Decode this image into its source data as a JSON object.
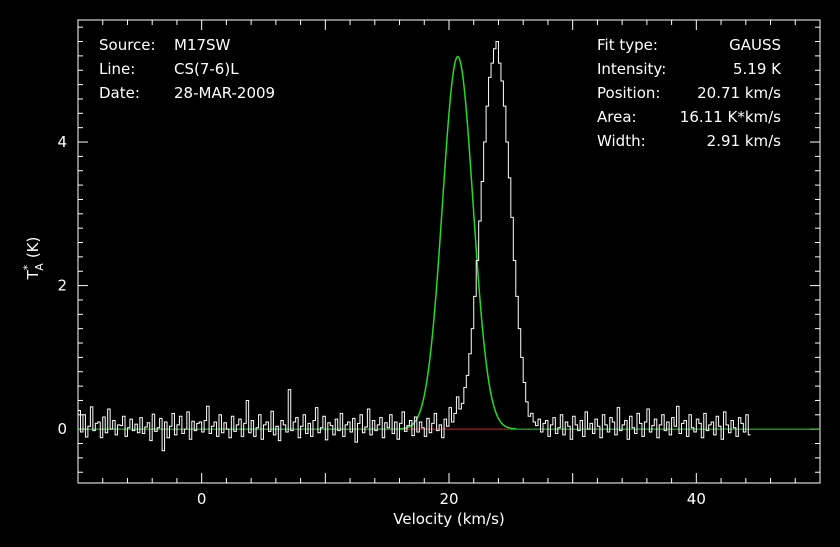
{
  "chart_data": {
    "type": "line",
    "xlabel": "Velocity (km/s)",
    "ylabel_main": "T",
    "ylabel_super": "*",
    "ylabel_sub": "A",
    "ylabel_unit": "(K)",
    "xlim": [
      -10,
      50
    ],
    "ylim": [
      -0.75,
      5.7
    ],
    "x_ticks": [
      0,
      20,
      40
    ],
    "y_ticks": [
      0,
      2,
      4
    ],
    "grid": false,
    "info_left": [
      {
        "key": "Source:",
        "value": "M17SW"
      },
      {
        "key": "Line:",
        "value": "CS(7-6)L"
      },
      {
        "key": "Date:",
        "value": "28-MAR-2009"
      }
    ],
    "info_right": [
      {
        "key": "Fit type:",
        "value": "GAUSS"
      },
      {
        "key": "Intensity:",
        "value": "5.19 K"
      },
      {
        "key": "Position:",
        "value": "20.71 km/s"
      },
      {
        "key": "Area:",
        "value": "16.11 K*km/s"
      },
      {
        "key": "Width:",
        "value": "2.91 km/s"
      }
    ],
    "fit": {
      "amplitude": 5.19,
      "center": 20.71,
      "fwhm": 2.91
    },
    "baseline_range": [
      16.5,
      25
    ],
    "series": [
      {
        "color": "#ffffff",
        "style": "histogram",
        "x_start": -10,
        "x_step": 0.2,
        "values": [
          0.26,
          -0.04,
          0.2,
          -0.11,
          0.04,
          0.31,
          -0.02,
          0.08,
          0.1,
          -0.12,
          0.17,
          -0.05,
          0.28,
          0.0,
          0.12,
          -0.08,
          0.06,
          0.05,
          0.18,
          -0.1,
          0.02,
          0.14,
          -0.02,
          0.07,
          -0.05,
          0.16,
          -0.06,
          0.03,
          0.09,
          -0.16,
          0.21,
          -0.03,
          0.02,
          0.15,
          -0.3,
          0.1,
          -0.12,
          0.04,
          0.22,
          -0.08,
          0.06,
          0.18,
          -0.06,
          0.0,
          0.24,
          -0.14,
          0.11,
          -0.02,
          0.08,
          0.1,
          -0.04,
          0.12,
          0.32,
          -0.06,
          0.04,
          0.1,
          -0.1,
          0.2,
          -0.05,
          0.09,
          0.0,
          -0.12,
          0.18,
          -0.03,
          0.06,
          0.14,
          -0.1,
          0.08,
          0.4,
          -0.05,
          0.12,
          -0.1,
          0.02,
          0.2,
          -0.14,
          0.06,
          0.1,
          -0.03,
          0.25,
          -0.08,
          0.04,
          -0.16,
          0.12,
          0.06,
          -0.04,
          0.55,
          -0.02,
          0.1,
          0.16,
          -0.12,
          0.04,
          0.2,
          -0.06,
          0.08,
          -0.1,
          0.12,
          0.3,
          -0.05,
          0.02,
          0.18,
          -0.15,
          0.09,
          0.05,
          -0.08,
          0.14,
          -0.02,
          0.22,
          -0.1,
          0.06,
          0.1,
          -0.04,
          0.15,
          -0.18,
          0.08,
          0.2,
          -0.05,
          0.03,
          0.28,
          -0.08,
          0.12,
          -0.02,
          0.06,
          0.16,
          -0.12,
          0.09,
          0.02,
          0.2,
          -0.06,
          0.1,
          -0.14,
          0.08,
          0.24,
          -0.03,
          0.05,
          0.12,
          -0.09,
          0.17,
          -0.04,
          0.1,
          0.02,
          -0.1,
          0.15,
          -0.05,
          0.08,
          0.22,
          -0.02,
          0.06,
          -0.12,
          0.14,
          0.04,
          0.3,
          0.1,
          0.22,
          0.45,
          0.28,
          0.36,
          0.58,
          0.75,
          1.05,
          1.4,
          1.85,
          2.35,
          2.9,
          3.45,
          4.0,
          4.5,
          4.9,
          5.1,
          5.3,
          5.4,
          5.1,
          4.85,
          4.5,
          4.0,
          3.5,
          2.95,
          2.35,
          1.85,
          1.4,
          1.0,
          0.65,
          0.38,
          0.18,
          0.22,
          0.1,
          0.05,
          0.14,
          -0.04,
          0.08,
          0.12,
          -0.1,
          0.06,
          0.16,
          -0.06,
          0.02,
          0.2,
          -0.08,
          0.1,
          0.04,
          -0.14,
          0.18,
          0.06,
          -0.02,
          0.12,
          -0.1,
          0.24,
          0.0,
          0.08,
          -0.06,
          0.14,
          0.04,
          -0.12,
          0.2,
          0.06,
          -0.04,
          0.16,
          0.1,
          -0.08,
          0.3,
          -0.02,
          0.06,
          0.12,
          -0.14,
          0.18,
          0.02,
          -0.06,
          0.22,
          0.08,
          -0.1,
          0.1,
          0.28,
          -0.04,
          0.05,
          0.14,
          -0.12,
          0.06,
          0.2,
          -0.02,
          0.1,
          -0.08,
          0.16,
          0.04,
          0.32,
          -0.06,
          0.08,
          0.12,
          -0.1,
          0.2,
          0.02,
          -0.04,
          0.14,
          0.08,
          -0.12,
          0.22,
          -0.02,
          0.06,
          0.1,
          -0.08,
          0.18,
          0.04,
          -0.14,
          0.24,
          0.06,
          -0.05,
          0.12,
          0.02,
          -0.1,
          0.16,
          0.08,
          -0.04,
          0.2,
          -0.08
        ]
      },
      {
        "name": "",
        "color": "#22dd22",
        "style": "gaussian-fit"
      },
      {
        "name": "",
        "color": "#dd2222",
        "style": "baseline"
      }
    ]
  }
}
